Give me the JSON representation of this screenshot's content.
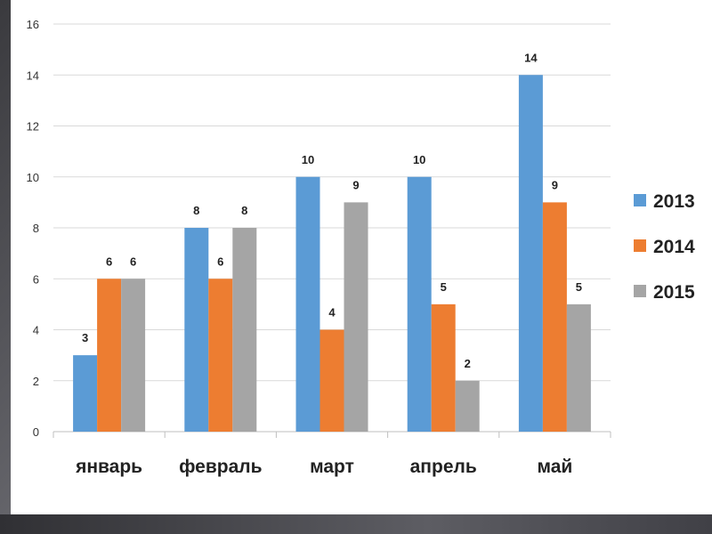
{
  "chart_data": {
    "type": "bar",
    "categories": [
      "январь",
      "февраль",
      "март",
      "апрель",
      "май"
    ],
    "series": [
      {
        "name": "2013",
        "color": "#5b9bd5",
        "values": [
          3,
          8,
          10,
          10,
          14
        ]
      },
      {
        "name": "2014",
        "color": "#ed7d31",
        "values": [
          6,
          6,
          4,
          5,
          9
        ]
      },
      {
        "name": "2015",
        "color": "#a5a5a5",
        "values": [
          6,
          8,
          9,
          2,
          5
        ]
      }
    ],
    "ylim": [
      0,
      16
    ],
    "yticks": [
      0,
      2,
      4,
      6,
      8,
      10,
      12,
      14,
      16
    ],
    "grid": true,
    "legend": "right",
    "data_labels": true
  }
}
